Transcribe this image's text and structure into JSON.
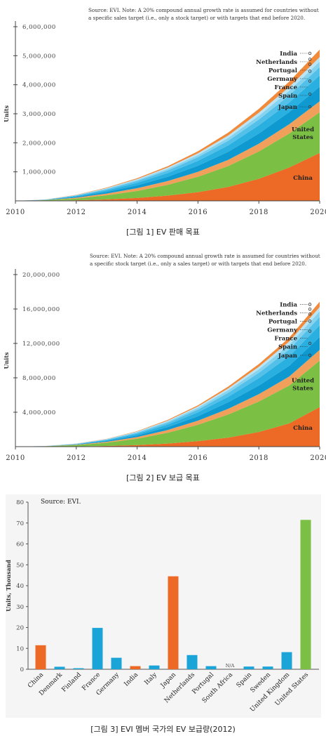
{
  "chart_data": [
    {
      "type": "area",
      "stacked": true,
      "source_note": "Source: EVI. Note: A 20% compound annual growth rate is assumed for countries without a specific sales target (i.e., only a stock target) or with targets that end before 2020.",
      "ylabel": "Units",
      "ylim": [
        0,
        6000000
      ],
      "yticks": [
        "6,000,000",
        "5,000,000",
        "4,000,000",
        "3,000,000",
        "2,000,000",
        "1,000,000"
      ],
      "xticks": [
        "2010",
        "2012",
        "2014",
        "2016",
        "2018",
        "2020"
      ],
      "x": [
        2010,
        2011,
        2012,
        2013,
        2014,
        2015,
        2016,
        2017,
        2018,
        2019,
        2020
      ],
      "series": [
        {
          "name": "China",
          "color": "#ec6a25",
          "values": [
            0,
            8000,
            20000,
            50000,
            100000,
            180000,
            300000,
            480000,
            760000,
            1150000,
            1650000
          ]
        },
        {
          "name": "United States",
          "color": "#7bbf44",
          "values": [
            0,
            15000,
            60000,
            140000,
            240000,
            370000,
            530000,
            720000,
            940000,
            1170000,
            1400000
          ]
        },
        {
          "name": "Japan",
          "color": "#f0a05a",
          "values": [
            0,
            5000,
            30000,
            60000,
            95000,
            130000,
            170000,
            215000,
            270000,
            320000,
            380000
          ]
        },
        {
          "name": "Spain",
          "color": "#0e9ad0",
          "values": [
            0,
            5000,
            30000,
            60000,
            100000,
            150000,
            210000,
            280000,
            350000,
            420000,
            500000
          ]
        },
        {
          "name": "France",
          "color": "#29afe0",
          "values": [
            0,
            5000,
            25000,
            50000,
            85000,
            125000,
            170000,
            220000,
            280000,
            330000,
            390000
          ]
        },
        {
          "name": "Germany",
          "color": "#52c0e8",
          "values": [
            0,
            3000,
            18000,
            38000,
            62000,
            90000,
            122000,
            160000,
            200000,
            245000,
            290000
          ]
        },
        {
          "name": "Portugal",
          "color": "#86d3ef",
          "values": [
            0,
            2000,
            10000,
            22000,
            38000,
            55000,
            75000,
            100000,
            130000,
            160000,
            190000
          ]
        },
        {
          "name": "Netherlands",
          "color": "#b8e4f5",
          "values": [
            0,
            2000,
            8000,
            18000,
            30000,
            45000,
            62000,
            82000,
            105000,
            130000,
            155000
          ]
        },
        {
          "name": "India",
          "color": "#f28a3c",
          "values": [
            0,
            2000,
            8000,
            18000,
            30000,
            48000,
            70000,
            98000,
            135000,
            185000,
            255000
          ]
        }
      ]
    },
    {
      "type": "area",
      "stacked": true,
      "source_note": "Source: EVI. Note: A 20% compound annual growth rate is assumed for countries without a specific stock target (i.e., only a sales target) or with targets that end before 2020.",
      "ylabel": "Units",
      "ylim": [
        0,
        20000000
      ],
      "yticks": [
        "20,000,000",
        "16,000,000",
        "12,000,000",
        "8,000,000",
        "4,000,000"
      ],
      "xticks": [
        "2010",
        "2012",
        "2014",
        "2016",
        "2018",
        "2020"
      ],
      "x": [
        2010,
        2011,
        2012,
        2013,
        2014,
        2015,
        2016,
        2017,
        2018,
        2019,
        2020
      ],
      "series": [
        {
          "name": "China",
          "color": "#ec6a25",
          "values": [
            0,
            10000,
            30000,
            80000,
            180000,
            360000,
            640000,
            1050000,
            1700000,
            2700000,
            4600000
          ]
        },
        {
          "name": "United States",
          "color": "#7bbf44",
          "values": [
            0,
            40000,
            150000,
            380000,
            740000,
            1250000,
            1900000,
            2700000,
            3550000,
            4400000,
            5400000
          ]
        },
        {
          "name": "Japan",
          "color": "#f0a05a",
          "values": [
            0,
            10000,
            40000,
            100000,
            190000,
            320000,
            480000,
            660000,
            850000,
            1050000,
            1250000
          ]
        },
        {
          "name": "Spain",
          "color": "#0e9ad0",
          "values": [
            0,
            5000,
            40000,
            100000,
            200000,
            340000,
            520000,
            760000,
            1000000,
            1250000,
            1500000
          ]
        },
        {
          "name": "France",
          "color": "#29afe0",
          "values": [
            0,
            5000,
            35000,
            90000,
            170000,
            290000,
            450000,
            640000,
            860000,
            1100000,
            1350000
          ]
        },
        {
          "name": "Germany",
          "color": "#52c0e8",
          "values": [
            0,
            3000,
            25000,
            65000,
            125000,
            210000,
            320000,
            460000,
            620000,
            800000,
            980000
          ]
        },
        {
          "name": "Portugal",
          "color": "#86d3ef",
          "values": [
            0,
            2000,
            15000,
            40000,
            80000,
            140000,
            210000,
            300000,
            410000,
            530000,
            660000
          ]
        },
        {
          "name": "Netherlands",
          "color": "#b8e4f5",
          "values": [
            0,
            2000,
            12000,
            30000,
            60000,
            100000,
            150000,
            220000,
            300000,
            390000,
            490000
          ]
        },
        {
          "name": "India",
          "color": "#f28a3c",
          "values": [
            0,
            2000,
            10000,
            25000,
            50000,
            90000,
            140000,
            210000,
            310000,
            440000,
            620000
          ]
        }
      ]
    },
    {
      "type": "bar",
      "source_note": "Source: EVI.",
      "ylabel": "Units, Thousand",
      "ylim": [
        0,
        80
      ],
      "yticks": [
        "80",
        "70",
        "60",
        "50",
        "40",
        "30",
        "20",
        "10",
        "0"
      ],
      "categories": [
        "China",
        "Denmark",
        "Finland",
        "France",
        "Germany",
        "India",
        "Italy",
        "Japan",
        "Netherlands",
        "Portugal",
        "South Africa",
        "Spain",
        "Sweden",
        "United Kingdom",
        "United States"
      ],
      "values": [
        11.5,
        1.2,
        0.5,
        19.8,
        5.5,
        1.5,
        1.8,
        44.5,
        6.8,
        1.5,
        0,
        1.3,
        1.3,
        8.2,
        71.5
      ],
      "colors": [
        "#ec6a25",
        "#1ba4d8",
        "#1ba4d8",
        "#1ba4d8",
        "#1ba4d8",
        "#ec6a25",
        "#1ba4d8",
        "#ec6a25",
        "#1ba4d8",
        "#1ba4d8",
        "#1ba4d8",
        "#1ba4d8",
        "#1ba4d8",
        "#1ba4d8",
        "#7bbf44"
      ],
      "annotations": [
        {
          "category": "South Africa",
          "text": "N/A"
        }
      ]
    }
  ],
  "captions": {
    "fig1": "[그림 1] EV 판매 목표",
    "fig2": "[그림 2] EV 보급 목표",
    "fig3": "[그림 3] EVI 멤버 국가의 EV 보급량(2012)"
  },
  "area_labels": {
    "fig1": {
      "china": "China",
      "us_line1": "United",
      "us_line2": "States"
    },
    "fig2": {
      "china": "China",
      "us_line1": "United",
      "us_line2": "States"
    }
  }
}
